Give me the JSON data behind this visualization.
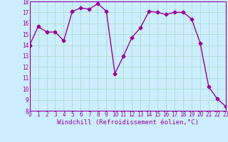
{
  "x": [
    0,
    1,
    2,
    3,
    4,
    5,
    6,
    7,
    8,
    9,
    10,
    11,
    12,
    13,
    14,
    15,
    16,
    17,
    18,
    19,
    20,
    21,
    22,
    23
  ],
  "y": [
    14.0,
    15.7,
    15.2,
    15.2,
    14.4,
    17.1,
    17.4,
    17.3,
    17.8,
    17.1,
    11.4,
    13.0,
    14.7,
    15.6,
    17.1,
    17.0,
    16.8,
    17.0,
    17.0,
    16.4,
    14.2,
    10.2,
    9.1,
    8.4
  ],
  "line_color": "#990099",
  "marker": "D",
  "markersize": 2.5,
  "linewidth": 1.0,
  "background_color": "#cceeff",
  "grid_color": "#aaddcc",
  "xlabel": "Windchill (Refroidissement éolien,°C)",
  "ylim": [
    8,
    18
  ],
  "xlim": [
    0,
    23
  ],
  "yticks": [
    8,
    9,
    10,
    11,
    12,
    13,
    14,
    15,
    16,
    17,
    18
  ],
  "xticks": [
    0,
    1,
    2,
    3,
    4,
    5,
    6,
    7,
    8,
    9,
    10,
    11,
    12,
    13,
    14,
    15,
    16,
    17,
    18,
    19,
    20,
    21,
    22,
    23
  ],
  "tick_label_fontsize": 5.5,
  "xlabel_fontsize": 6.5
}
